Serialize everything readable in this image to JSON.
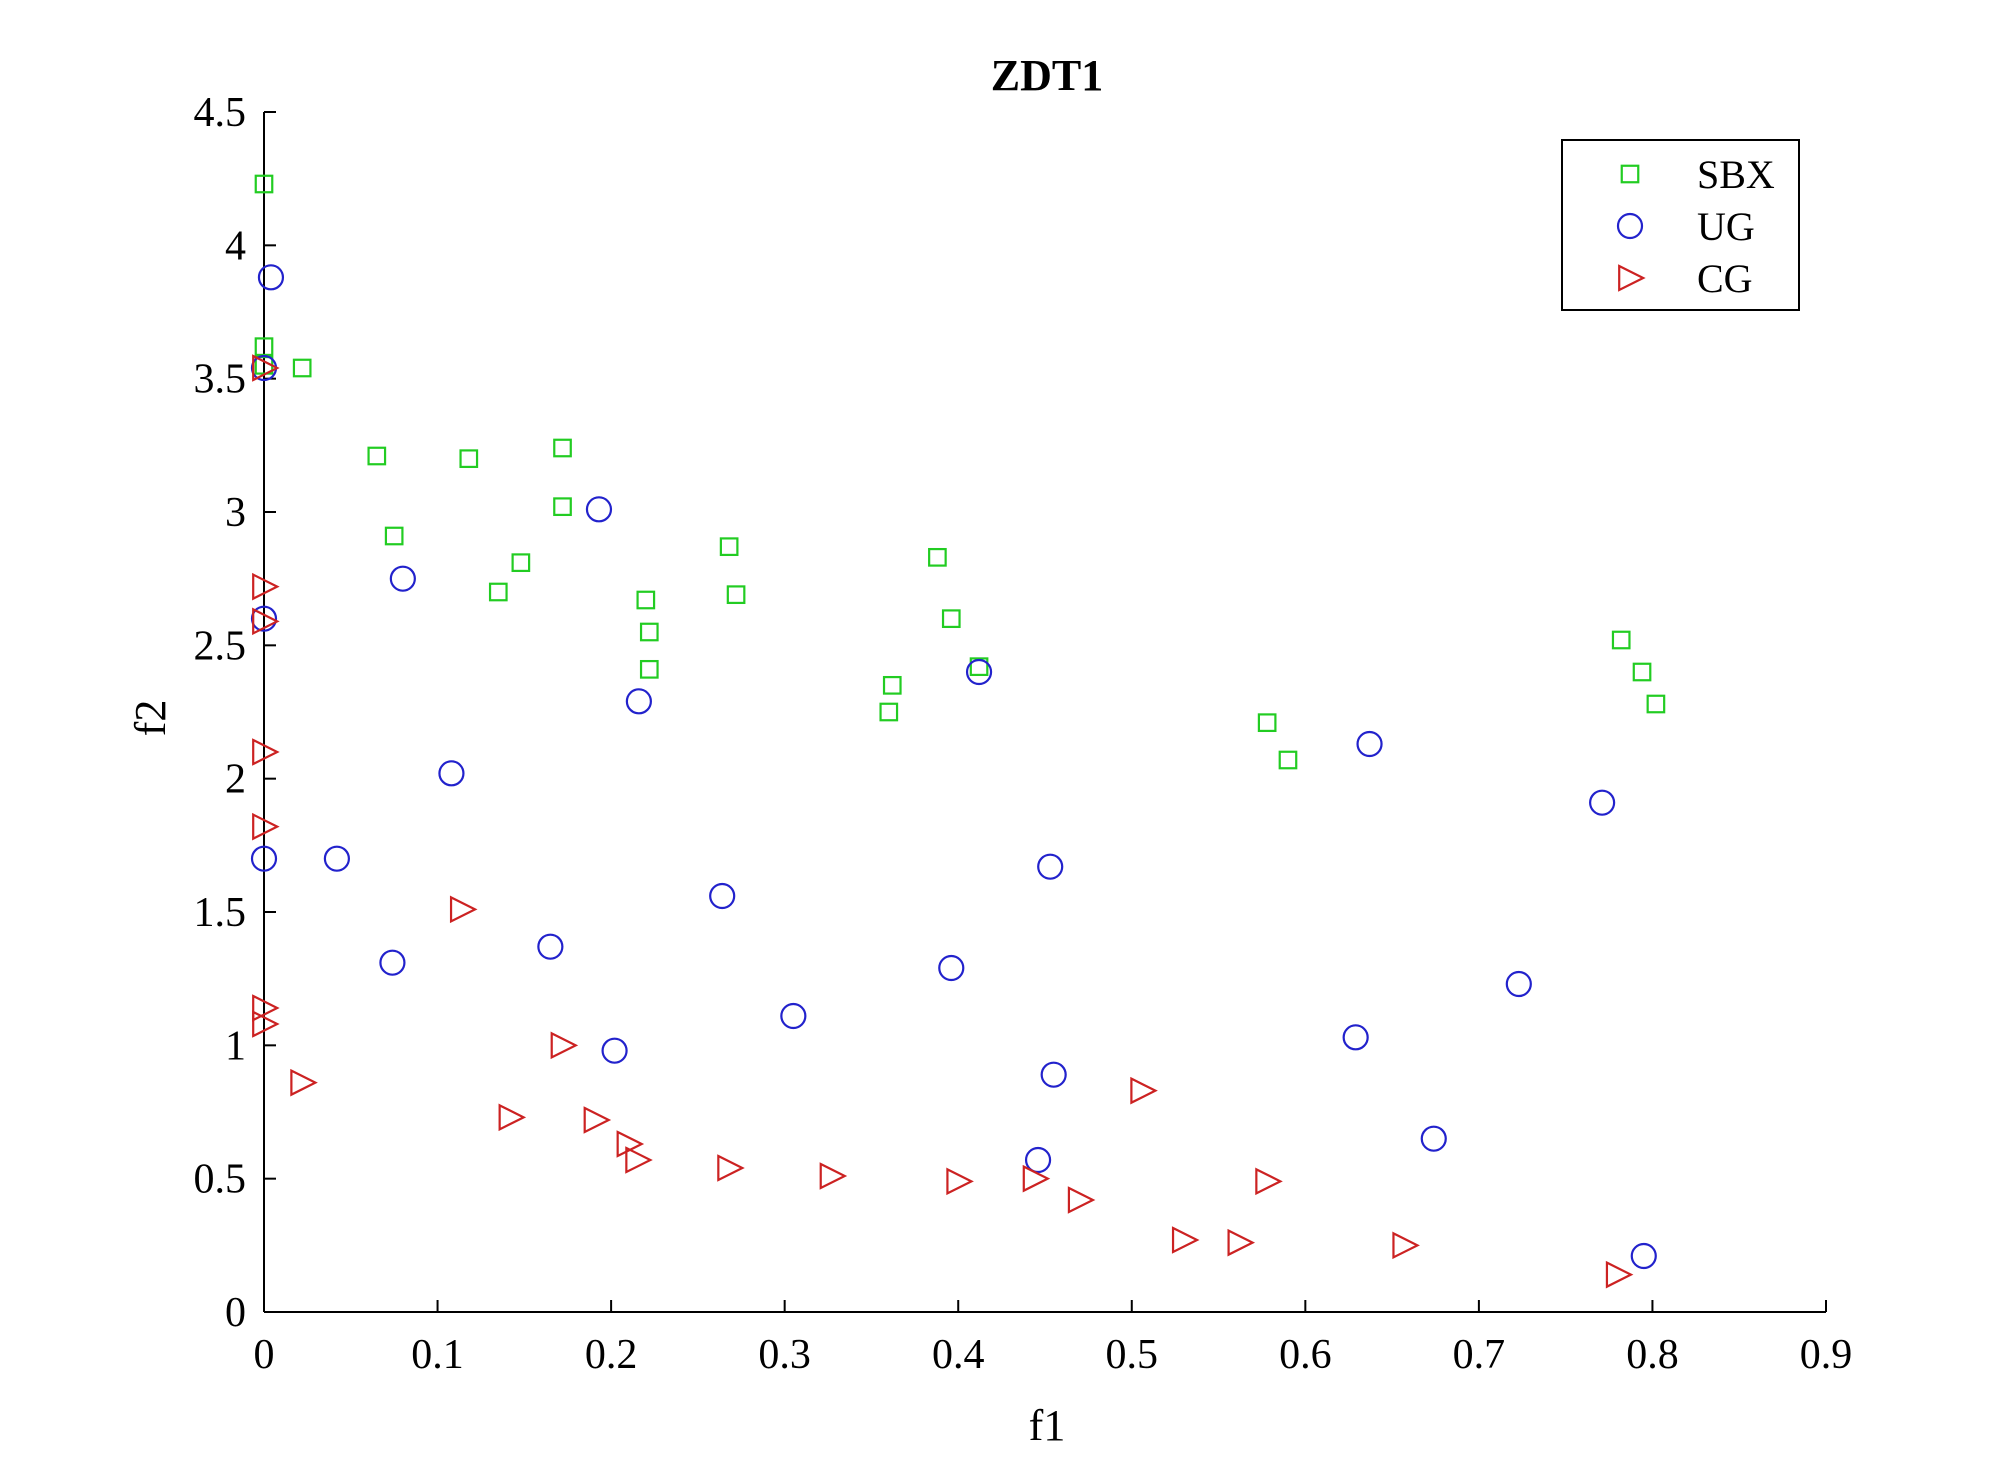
{
  "chart_data": {
    "type": "scatter",
    "title": "ZDT1",
    "xlabel": "f1",
    "ylabel": "f2",
    "xlim": [
      0,
      0.9
    ],
    "ylim": [
      0,
      4.5
    ],
    "xticks": [
      "0",
      "0.1",
      "0.2",
      "0.3",
      "0.4",
      "0.5",
      "0.6",
      "0.7",
      "0.8",
      "0.9"
    ],
    "yticks": [
      "0",
      "0.5",
      "1",
      "1.5",
      "2",
      "2.5",
      "3",
      "3.5",
      "4",
      "4.5"
    ],
    "grid": false,
    "legend_position": "top-right",
    "series": [
      {
        "name": "SBX",
        "marker": "square",
        "color": "#22cc22",
        "points": [
          [
            0.0,
            4.23
          ],
          [
            0.0,
            3.62
          ],
          [
            0.022,
            3.54
          ],
          [
            0.0,
            3.55
          ],
          [
            0.065,
            3.21
          ],
          [
            0.118,
            3.2
          ],
          [
            0.172,
            3.24
          ],
          [
            0.075,
            2.91
          ],
          [
            0.172,
            3.02
          ],
          [
            0.148,
            2.81
          ],
          [
            0.135,
            2.7
          ],
          [
            0.268,
            2.87
          ],
          [
            0.22,
            2.67
          ],
          [
            0.272,
            2.69
          ],
          [
            0.222,
            2.55
          ],
          [
            0.222,
            2.41
          ],
          [
            0.388,
            2.83
          ],
          [
            0.396,
            2.6
          ],
          [
            0.412,
            2.42
          ],
          [
            0.362,
            2.35
          ],
          [
            0.36,
            2.25
          ],
          [
            0.578,
            2.21
          ],
          [
            0.59,
            2.07
          ],
          [
            0.782,
            2.52
          ],
          [
            0.794,
            2.4
          ],
          [
            0.802,
            2.28
          ]
        ]
      },
      {
        "name": "UG",
        "marker": "circle",
        "color": "#2222cc",
        "points": [
          [
            0.004,
            3.88
          ],
          [
            0.0,
            3.54
          ],
          [
            0.193,
            3.01
          ],
          [
            0.08,
            2.75
          ],
          [
            0.0,
            2.6
          ],
          [
            0.216,
            2.29
          ],
          [
            0.412,
            2.4
          ],
          [
            0.108,
            2.02
          ],
          [
            0.637,
            2.13
          ],
          [
            0.771,
            1.91
          ],
          [
            0.0,
            1.7
          ],
          [
            0.042,
            1.7
          ],
          [
            0.264,
            1.56
          ],
          [
            0.453,
            1.67
          ],
          [
            0.074,
            1.31
          ],
          [
            0.165,
            1.37
          ],
          [
            0.396,
            1.29
          ],
          [
            0.305,
            1.11
          ],
          [
            0.723,
            1.23
          ],
          [
            0.202,
            0.98
          ],
          [
            0.629,
            1.03
          ],
          [
            0.455,
            0.89
          ],
          [
            0.674,
            0.65
          ],
          [
            0.446,
            0.57
          ],
          [
            0.795,
            0.21
          ]
        ]
      },
      {
        "name": "CG",
        "marker": "triangle-right",
        "color": "#cc2222",
        "points": [
          [
            0.0,
            3.54
          ],
          [
            0.0,
            2.72
          ],
          [
            0.0,
            2.59
          ],
          [
            0.0,
            2.1
          ],
          [
            0.0,
            1.82
          ],
          [
            0.114,
            1.51
          ],
          [
            0.0,
            1.14
          ],
          [
            0.0,
            1.08
          ],
          [
            0.172,
            1.0
          ],
          [
            0.022,
            0.86
          ],
          [
            0.142,
            0.73
          ],
          [
            0.191,
            0.72
          ],
          [
            0.21,
            0.63
          ],
          [
            0.215,
            0.57
          ],
          [
            0.268,
            0.54
          ],
          [
            0.327,
            0.51
          ],
          [
            0.4,
            0.49
          ],
          [
            0.444,
            0.5
          ],
          [
            0.47,
            0.42
          ],
          [
            0.506,
            0.83
          ],
          [
            0.53,
            0.27
          ],
          [
            0.562,
            0.26
          ],
          [
            0.578,
            0.49
          ],
          [
            0.657,
            0.25
          ],
          [
            0.78,
            0.14
          ]
        ]
      }
    ]
  }
}
